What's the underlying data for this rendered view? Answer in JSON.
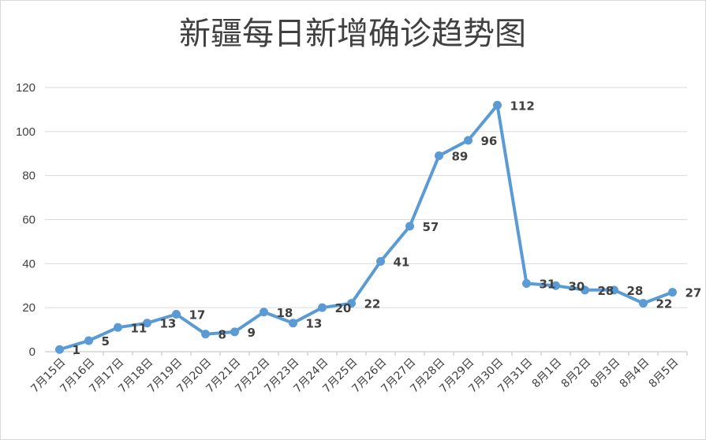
{
  "chart_data": {
    "type": "line",
    "title": "新疆每日新增确诊趋势图",
    "xlabel": "",
    "ylabel": "",
    "ylim": [
      0,
      120
    ],
    "yticks": [
      0,
      20,
      40,
      60,
      80,
      100,
      120
    ],
    "grid": true,
    "legend": "none",
    "series_color": "#5b9bd5",
    "categories": [
      "7月15日",
      "7月16日",
      "7月17日",
      "7月18日",
      "7月19日",
      "7月20日",
      "7月21日",
      "7月22日",
      "7月23日",
      "7月24日",
      "7月25日",
      "7月26日",
      "7月27日",
      "7月28日",
      "7月29日",
      "7月30日",
      "7月31日",
      "8月1日",
      "8月2日",
      "8月3日",
      "8月4日",
      "8月5日"
    ],
    "series": [
      {
        "values": [
          1,
          5,
          11,
          13,
          17,
          8,
          9,
          18,
          13,
          20,
          22,
          41,
          57,
          89,
          96,
          112,
          31,
          30,
          28,
          28,
          22,
          27
        ]
      }
    ]
  }
}
